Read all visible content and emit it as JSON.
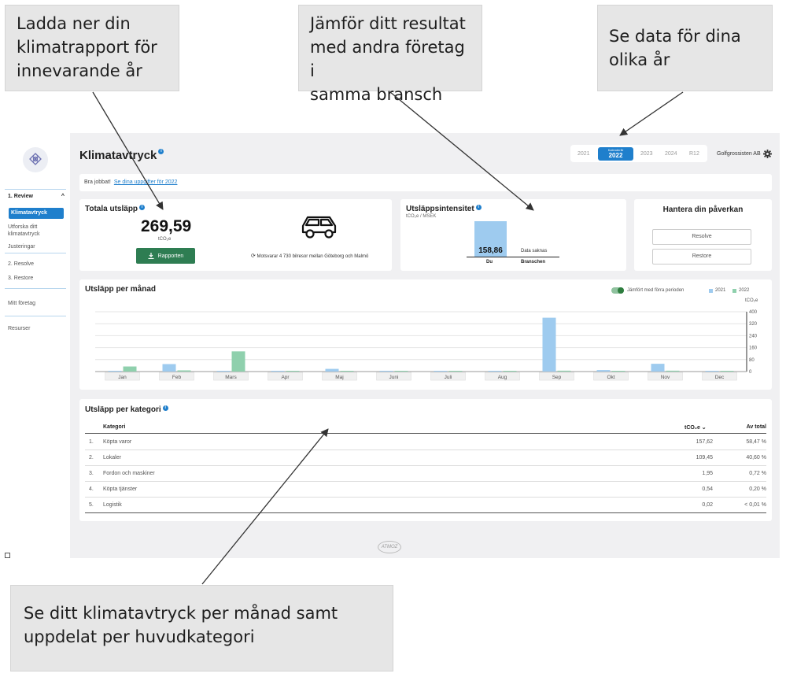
{
  "callouts": {
    "download": [
      "Ladda ner din",
      "klimatrapport för",
      "innevarande år"
    ],
    "compare": [
      "Jämför ditt resultat",
      "med andra företag i",
      "samma bransch"
    ],
    "years": [
      "Se data för dina",
      "olika år"
    ],
    "monthly": [
      "Se ditt klimatavtryck per månad samt",
      "uppdelat per huvudkategori"
    ]
  },
  "sidebar": {
    "section1": "1. Review",
    "active_item": "Klimatavtryck",
    "item_explore": [
      "Utforska ditt",
      "klimatavtryck"
    ],
    "item_adjust": "Justeringar",
    "section2": "2. Resolve",
    "section3": "3. Restore",
    "my_company": "Mitt företag",
    "resources": "Resurser"
  },
  "header": {
    "title": "Klimatavtryck",
    "years": [
      "2021",
      "2022",
      "2023",
      "2024",
      "R12"
    ],
    "selected_year_caption": "Kalenderår",
    "company": "Golfgrossisten AB"
  },
  "banner": {
    "text": "Bra jobbat!",
    "link": "Se dina uppgifter för 2022"
  },
  "total": {
    "title": "Totala utsläpp",
    "value": "269,59",
    "unit": "tCO₂e",
    "button": "Rapporten",
    "equivalent": "Motsvarar 4 730 bilresor mellan Göteborg och Malmö"
  },
  "intensity": {
    "title": "Utsläppsintensitet",
    "unit": "tCO₂e / MSEK",
    "you_value": "158,86",
    "missing": "Data saknas",
    "you_label": "Du",
    "industry_label": "Branschen"
  },
  "impact": {
    "title": "Hantera din påverkan",
    "buttons": [
      "Resolve",
      "Restore"
    ]
  },
  "chart_data": {
    "type": "bar",
    "title": "Utsläpp per månad",
    "toggle_label": "Jämfört med förra perioden",
    "ylabel": "tCO₂e",
    "ylim": [
      0,
      400
    ],
    "yticks": [
      0,
      80,
      160,
      240,
      320,
      400
    ],
    "categories": [
      "Jan",
      "Feb",
      "Mars",
      "Apr",
      "Maj",
      "Juni",
      "Juli",
      "Aug",
      "Sep",
      "Okt",
      "Nov",
      "Dec"
    ],
    "series": [
      {
        "name": "2021",
        "color": "#9ecbef",
        "values": [
          3,
          50,
          0,
          2,
          18,
          2,
          1,
          2,
          360,
          10,
          52,
          2
        ]
      },
      {
        "name": "2022",
        "color": "#8fd0ad",
        "values": [
          34,
          8,
          135,
          4,
          5,
          4,
          3,
          4,
          6,
          5,
          6,
          5
        ]
      }
    ],
    "grid": true,
    "legend": "top-right"
  },
  "category": {
    "title": "Utsläpp per kategori",
    "columns": {
      "name": "Kategori",
      "value": "tCO₂e",
      "share": "Av total"
    },
    "rows": [
      {
        "index": "1.",
        "name": "Köpta varor",
        "value": "157,62",
        "share": "58,47 %"
      },
      {
        "index": "2.",
        "name": "Lokaler",
        "value": "109,45",
        "share": "40,60 %"
      },
      {
        "index": "3.",
        "name": "Fordon och maskiner",
        "value": "1,95",
        "share": "0,72 %"
      },
      {
        "index": "4.",
        "name": "Köpta tjänster",
        "value": "0,54",
        "share": "0,20 %"
      },
      {
        "index": "5.",
        "name": "Logistik",
        "value": "0,02",
        "share": "< 0,01 %"
      }
    ]
  },
  "footer": {
    "logo_text": "ATMOZ"
  }
}
